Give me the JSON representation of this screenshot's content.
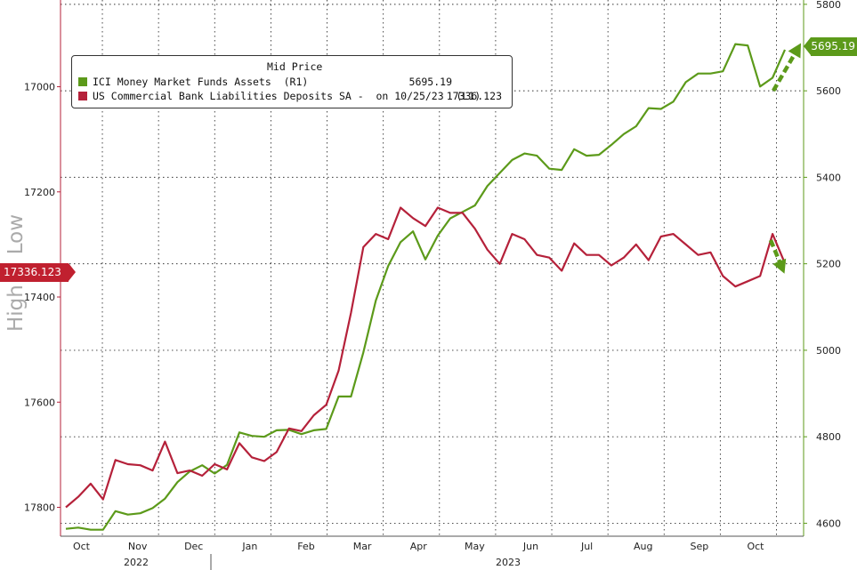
{
  "chart_data": {
    "type": "line",
    "x_labels": [
      "Oct",
      "Nov",
      "Dec",
      "Jan",
      "Feb",
      "Mar",
      "Apr",
      "May",
      "Jun",
      "Jul",
      "Aug",
      "Sep",
      "Oct"
    ],
    "year_labels": [
      "2022",
      "2023"
    ],
    "left_axis": {
      "ticks": [
        17000,
        17200,
        17400,
        17600,
        17800
      ],
      "ylim": [
        16835,
        17855
      ],
      "inverted": true
    },
    "right_axis": {
      "ticks": [
        4600,
        4800,
        5000,
        5200,
        5400,
        5600,
        5800
      ],
      "ylim": [
        4570,
        5810
      ]
    },
    "series": [
      {
        "name": "ICI Money Market Funds Assets  (R1)",
        "axis": "right",
        "color": "#5c9a1a",
        "last_value": "5695.19",
        "values": [
          4587,
          4590,
          4585,
          4585,
          4628,
          4620,
          4623,
          4635,
          4657,
          4695,
          4720,
          4734,
          4715,
          4735,
          4810,
          4802,
          4800,
          4815,
          4816,
          4806,
          4815,
          4818,
          4893,
          4893,
          4995,
          5115,
          5195,
          5250,
          5275,
          5210,
          5265,
          5305,
          5320,
          5335,
          5380,
          5410,
          5440,
          5455,
          5450,
          5420,
          5417,
          5465,
          5450,
          5452,
          5475,
          5500,
          5518,
          5560,
          5558,
          5575,
          5620,
          5640,
          5640,
          5645,
          5708,
          5705,
          5610,
          5630,
          5695
        ]
      },
      {
        "name": "US Commercial Bank Liabilities Deposits SA -  on 10/25/23  (L1)",
        "axis": "left",
        "color": "#b5213a",
        "last_value": "17336.123",
        "values": [
          17800,
          17780,
          17755,
          17785,
          17710,
          17718,
          17720,
          17730,
          17675,
          17735,
          17730,
          17740,
          17718,
          17728,
          17678,
          17705,
          17712,
          17695,
          17650,
          17655,
          17625,
          17605,
          17540,
          17430,
          17305,
          17280,
          17290,
          17230,
          17250,
          17265,
          17230,
          17240,
          17240,
          17270,
          17310,
          17337,
          17280,
          17290,
          17320,
          17325,
          17350,
          17298,
          17320,
          17320,
          17340,
          17325,
          17300,
          17330,
          17285,
          17280,
          17300,
          17320,
          17315,
          17360,
          17380,
          17370,
          17360,
          17280,
          17336
        ]
      }
    ],
    "grid": "dotted",
    "legend": {
      "title": "Mid Price",
      "position": "top-left"
    },
    "annotations": {
      "left_badge": "17336.123",
      "right_badge": "5695.19",
      "side_label": "High > Low"
    }
  }
}
